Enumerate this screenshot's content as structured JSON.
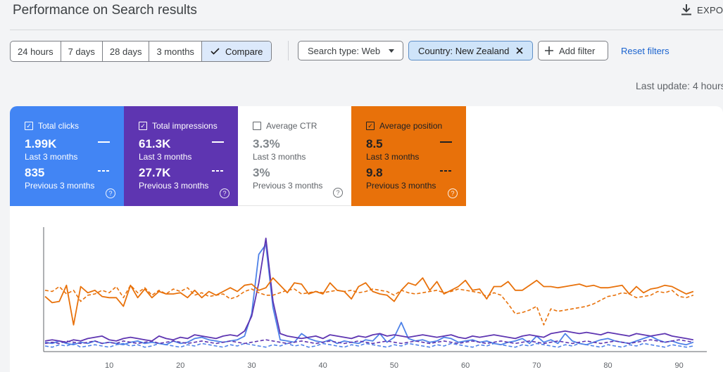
{
  "header": {
    "title": "Performance on Search results",
    "export_label": "EXPO"
  },
  "date_ranges": [
    {
      "label": "24 hours"
    },
    {
      "label": "7 days"
    },
    {
      "label": "28 days"
    },
    {
      "label": "3 months"
    },
    {
      "label": "Compare"
    }
  ],
  "filters": {
    "search_type": "Search type: Web",
    "country": "Country: New Zealand",
    "add_filter": "Add filter",
    "reset": "Reset filters"
  },
  "last_update": "Last update: 4 hours",
  "metrics": [
    {
      "label": "Total clicks",
      "checked": true,
      "current": "1.99K",
      "current_period": "Last 3 months",
      "previous": "835",
      "previous_period": "Previous 3 months",
      "color": "#4285f4"
    },
    {
      "label": "Total impressions",
      "checked": true,
      "current": "61.3K",
      "current_period": "Last 3 months",
      "previous": "27.7K",
      "previous_period": "Previous 3 months",
      "color": "#5e35b1"
    },
    {
      "label": "Average CTR",
      "checked": false,
      "current": "3.3%",
      "current_period": "Last 3 months",
      "previous": "3%",
      "previous_period": "Previous 3 months",
      "color": "#ffffff"
    },
    {
      "label": "Average position",
      "checked": true,
      "current": "8.5",
      "current_period": "Last 3 months",
      "previous": "9.8",
      "previous_period": "Previous 3 months",
      "color": "#e8710a"
    }
  ],
  "chart_data": {
    "type": "line",
    "x_ticks": [
      "10",
      "20",
      "30",
      "40",
      "50",
      "60",
      "70",
      "80",
      "90"
    ],
    "xlim": [
      1,
      92
    ],
    "ylim": [
      0,
      100
    ],
    "grid": false,
    "series": [
      {
        "metric": "clicks",
        "period": "current",
        "color": "#4e82e8",
        "dashed": false,
        "values": [
          7,
          6,
          8,
          6,
          5,
          7,
          6,
          8,
          6,
          7,
          6,
          5,
          7,
          8,
          6,
          7,
          6,
          5,
          8,
          6,
          7,
          10,
          11,
          9,
          8,
          7,
          8,
          9,
          12,
          30,
          78,
          86,
          35,
          9,
          8,
          7,
          14,
          10,
          8,
          7,
          9,
          6,
          8,
          7,
          6,
          9,
          8,
          14,
          7,
          11,
          23,
          10,
          8,
          9,
          7,
          8,
          11,
          10,
          7,
          8,
          9,
          7,
          8,
          6,
          5,
          7,
          8,
          10,
          6,
          12,
          7,
          9,
          6,
          14,
          8,
          6,
          5,
          7,
          9,
          10,
          8,
          7,
          6,
          8,
          10,
          12,
          9,
          7,
          8,
          6,
          5,
          7
        ]
      },
      {
        "metric": "impressions",
        "period": "current",
        "color": "#5e35b1",
        "dashed": false,
        "values": [
          8,
          9,
          8,
          7,
          9,
          8,
          10,
          11,
          12,
          9,
          8,
          10,
          11,
          10,
          9,
          8,
          12,
          10,
          9,
          11,
          10,
          13,
          12,
          11,
          10,
          12,
          13,
          12,
          16,
          28,
          55,
          91,
          40,
          14,
          12,
          11,
          10,
          11,
          12,
          10,
          13,
          12,
          11,
          10,
          12,
          11,
          13,
          14,
          12,
          13,
          12,
          11,
          12,
          13,
          12,
          11,
          12,
          13,
          11,
          10,
          12,
          11,
          12,
          13,
          12,
          11,
          10,
          12,
          13,
          12,
          11,
          14,
          15,
          16,
          15,
          14,
          15,
          14,
          13,
          15,
          14,
          13,
          12,
          14,
          13,
          12,
          13,
          14,
          12,
          11,
          10,
          9
        ]
      },
      {
        "metric": "clicks",
        "period": "previous",
        "color": "#4e82e8",
        "dashed": true,
        "values": [
          4,
          3,
          5,
          4,
          6,
          3,
          4,
          5,
          4,
          3,
          5,
          6,
          4,
          5,
          3,
          4,
          6,
          5,
          4,
          3,
          5,
          4,
          6,
          5,
          4,
          3,
          5,
          4,
          6,
          5,
          4,
          3,
          5,
          4,
          6,
          4,
          5,
          3,
          4,
          6,
          5,
          4,
          3,
          5,
          4,
          6,
          5,
          4,
          3,
          5,
          4,
          6,
          5,
          4,
          3,
          5,
          4,
          6,
          5,
          4,
          3,
          5,
          4,
          6,
          5,
          4,
          3,
          5,
          4,
          6,
          5,
          4,
          3,
          5,
          4,
          6,
          5,
          4,
          3,
          5,
          4,
          3,
          5,
          4,
          6,
          5,
          4,
          3,
          5,
          4,
          3,
          4
        ]
      },
      {
        "metric": "impressions",
        "period": "previous",
        "color": "#5e35b1",
        "dashed": true,
        "values": [
          6,
          7,
          6,
          8,
          7,
          6,
          7,
          8,
          6,
          7,
          6,
          8,
          7,
          6,
          7,
          8,
          6,
          7,
          8,
          7,
          6,
          7,
          8,
          7,
          6,
          7,
          8,
          7,
          6,
          7,
          8,
          9,
          8,
          7,
          6,
          7,
          8,
          7,
          6,
          7,
          8,
          7,
          6,
          7,
          8,
          7,
          6,
          7,
          8,
          7,
          6,
          7,
          8,
          7,
          6,
          7,
          8,
          7,
          6,
          7,
          8,
          7,
          6,
          7,
          8,
          7,
          6,
          7,
          8,
          7,
          6,
          7,
          8,
          7,
          6,
          7,
          8,
          7,
          6,
          7,
          8,
          7,
          6,
          7,
          8,
          9,
          8,
          7,
          8,
          9,
          8,
          7
        ]
      },
      {
        "metric": "position",
        "period": "current",
        "color": "#e8710a",
        "dashed": false,
        "values": [
          44,
          39,
          40,
          53,
          21,
          52,
          47,
          49,
          44,
          43,
          43,
          36,
          53,
          43,
          50,
          43,
          48,
          46,
          46,
          47,
          43,
          49,
          43,
          48,
          45,
          48,
          51,
          48,
          53,
          54,
          49,
          51,
          59,
          53,
          47,
          55,
          54,
          46,
          48,
          46,
          55,
          49,
          48,
          42,
          52,
          55,
          48,
          46,
          45,
          40,
          49,
          55,
          53,
          59,
          49,
          56,
          46,
          49,
          52,
          57,
          49,
          50,
          42,
          52,
          52,
          56,
          49,
          49,
          53,
          57,
          52,
          52,
          51,
          52,
          53,
          54,
          52,
          53,
          51,
          51,
          52,
          53,
          46,
          52,
          47,
          50,
          51,
          53,
          52,
          49,
          46,
          48
        ]
      },
      {
        "metric": "position",
        "period": "previous",
        "color": "#e8710a",
        "dashed": true,
        "values": [
          49,
          48,
          52,
          46,
          49,
          40,
          45,
          46,
          49,
          47,
          52,
          43,
          53,
          47,
          51,
          45,
          49,
          46,
          50,
          48,
          51,
          45,
          47,
          44,
          45,
          46,
          42,
          44,
          48,
          50,
          47,
          45,
          45,
          47,
          49,
          50,
          46,
          47,
          48,
          47,
          48,
          49,
          48,
          49,
          47,
          48,
          50,
          49,
          48,
          45,
          49,
          47,
          46,
          47,
          48,
          49,
          47,
          48,
          50,
          49,
          48,
          47,
          44,
          47,
          45,
          38,
          30,
          31,
          33,
          36,
          21,
          34,
          32,
          33,
          34,
          35,
          36,
          38,
          41,
          44,
          45,
          47,
          46,
          43,
          44,
          45,
          48,
          47,
          49,
          44,
          43,
          45
        ]
      }
    ]
  }
}
